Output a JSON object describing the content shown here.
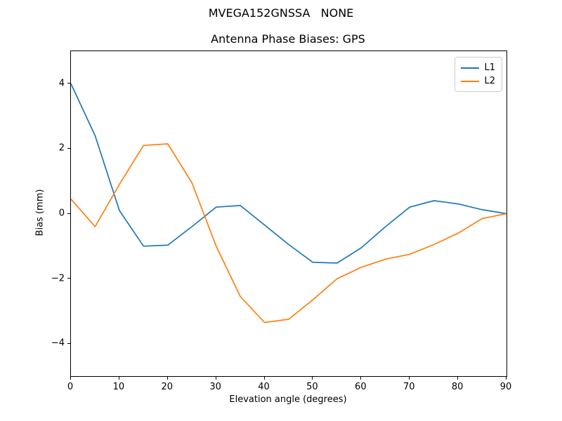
{
  "suptitle": "MVEGA152GNSSA   NONE",
  "chart_data": {
    "type": "line",
    "title": "Antenna Phase Biases: GPS",
    "xlabel": "Elevation angle (degrees)",
    "ylabel": "Bias (mm)",
    "xlim": [
      0,
      90
    ],
    "ylim": [
      -5,
      5
    ],
    "x_ticks": [
      0,
      10,
      20,
      30,
      40,
      50,
      60,
      70,
      80,
      90
    ],
    "y_ticks": [
      4,
      2,
      0,
      -2,
      -4
    ],
    "grid": false,
    "legend_position": "upper right",
    "x": [
      0,
      5,
      10,
      15,
      20,
      25,
      30,
      35,
      40,
      45,
      50,
      55,
      60,
      65,
      70,
      75,
      80,
      85,
      90
    ],
    "series": [
      {
        "name": "L1",
        "color": "#1f77b4",
        "values": [
          4.0,
          2.4,
          0.1,
          -1.0,
          -0.97,
          -0.4,
          0.2,
          0.25,
          -0.35,
          -0.95,
          -1.5,
          -1.52,
          -1.05,
          -0.4,
          0.2,
          0.4,
          0.3,
          0.12,
          0.0
        ]
      },
      {
        "name": "L2",
        "color": "#ff7f0e",
        "values": [
          0.45,
          -0.4,
          0.9,
          2.1,
          2.15,
          0.95,
          -1.0,
          -2.55,
          -3.35,
          -3.25,
          -2.65,
          -2.0,
          -1.65,
          -1.4,
          -1.25,
          -0.95,
          -0.6,
          -0.15,
          0.0
        ]
      }
    ]
  }
}
